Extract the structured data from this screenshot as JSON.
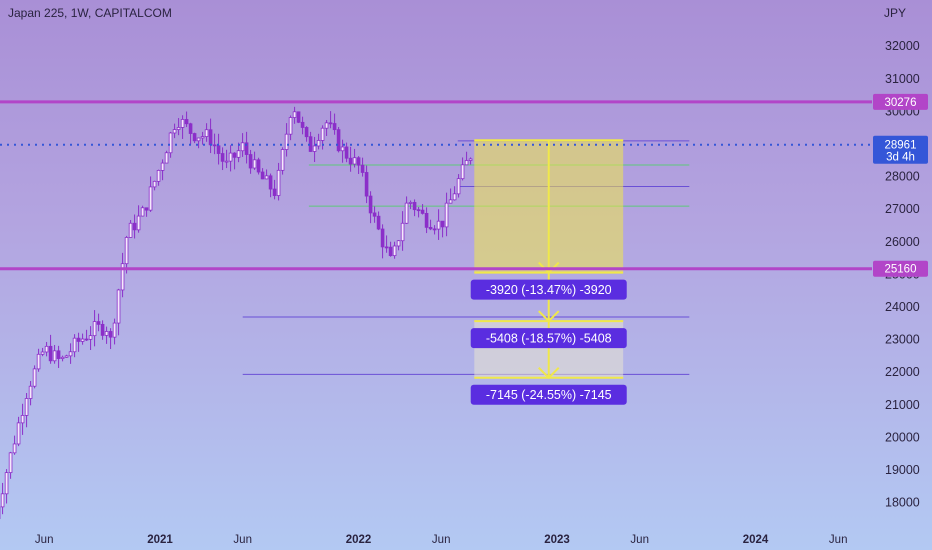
{
  "header": {
    "title": "Japan 225, 1W, CAPITALCOM"
  },
  "axis": {
    "unit": "JPY"
  },
  "chart_data": {
    "type": "candlestick",
    "title": "Japan 225, 1W, CAPITALCOM",
    "y_unit": "JPY",
    "ylim": [
      17300,
      33400
    ],
    "y_ticks": [
      18000,
      19000,
      20000,
      21000,
      22000,
      23000,
      24000,
      25000,
      26000,
      27000,
      28000,
      29000,
      30000,
      31000,
      32000
    ],
    "x_ticks": [
      {
        "date": "2020-06",
        "label": "Jun",
        "bold": false
      },
      {
        "date": "2021-01",
        "label": "2021",
        "bold": true
      },
      {
        "date": "2021-06",
        "label": "Jun",
        "bold": false
      },
      {
        "date": "2022-01",
        "label": "2022",
        "bold": true
      },
      {
        "date": "2022-06",
        "label": "Jun",
        "bold": false
      },
      {
        "date": "2023-01",
        "label": "2023",
        "bold": true
      },
      {
        "date": "2023-06",
        "label": "Jun",
        "bold": false
      },
      {
        "date": "2024-01",
        "label": "2024",
        "bold": true
      },
      {
        "date": "2024-06",
        "label": "Jun",
        "bold": false
      }
    ],
    "price_path": [
      [
        "2020-03",
        17500
      ],
      [
        "2020-04",
        19500
      ],
      [
        "2020-05",
        21500
      ],
      [
        "2020-06",
        22700
      ],
      [
        "2020-07",
        22300
      ],
      [
        "2020-08",
        22900
      ],
      [
        "2020-09",
        23300
      ],
      [
        "2020-10",
        23400
      ],
      [
        "2020-10",
        22900
      ],
      [
        "2020-11",
        26200
      ],
      [
        "2020-12",
        26900
      ],
      [
        "2021-01",
        28300
      ],
      [
        "2021-02",
        29800
      ],
      [
        "2021-03",
        29300
      ],
      [
        "2021-04",
        29200
      ],
      [
        "2021-05",
        28300
      ],
      [
        "2021-06",
        28900
      ],
      [
        "2021-07",
        28000
      ],
      [
        "2021-08",
        27500
      ],
      [
        "2021-09",
        30300
      ],
      [
        "2021-10",
        28800
      ],
      [
        "2021-11",
        29700
      ],
      [
        "2021-12",
        28800
      ],
      [
        "2022-01",
        28300
      ],
      [
        "2022-02",
        26600
      ],
      [
        "2022-03",
        25300
      ],
      [
        "2022-04",
        27300
      ],
      [
        "2022-05",
        26700
      ],
      [
        "2022-06",
        26500
      ],
      [
        "2022-07",
        27800
      ],
      [
        "2022-08",
        28900
      ]
    ],
    "horizontal_levels": [
      {
        "price": 30276,
        "label": "30276",
        "color": "#b245c8"
      },
      {
        "price": 25160,
        "label": "25160",
        "color": "#b245c8"
      }
    ],
    "current_price": {
      "price": 28961,
      "label": "28961",
      "countdown": "3d 4h",
      "color": "#3456d8"
    },
    "projection_levels": [
      {
        "price": 25041,
        "label": "-3920 (-13.47%) -3920"
      },
      {
        "price": 23553,
        "label": "-5408 (-18.57%) -5408"
      },
      {
        "price": 21816,
        "label": "-7145 (-24.55%) -7145"
      }
    ],
    "reference_lines": [
      {
        "price": 29080,
        "date_from": "2022-07",
        "date_to": "2023-09",
        "color": "#6a4fd6"
      },
      {
        "price": 28340,
        "date_from": "2021-10",
        "date_to": "2023-09",
        "color": "#5ec87a"
      },
      {
        "price": 27680,
        "date_from": "2022-07",
        "date_to": "2023-09",
        "color": "#6a4fd6"
      },
      {
        "price": 27080,
        "date_from": "2021-10",
        "date_to": "2023-09",
        "color": "#5ec87a"
      },
      {
        "price": 23680,
        "date_from": "2021-06",
        "date_to": "2023-09",
        "color": "#6a4fd6"
      },
      {
        "price": 21920,
        "date_from": "2021-06",
        "date_to": "2023-09",
        "color": "#6a4fd6"
      }
    ],
    "projection_zone": {
      "date_from": "2022-08",
      "date_to": "2023-05",
      "price_top": 29100,
      "price_bottom": 21816
    },
    "colors": {
      "candle": "#8b2fc9",
      "highlight": "#f0e84a",
      "badge": "#5a2de0",
      "level": "#b245c8"
    }
  }
}
